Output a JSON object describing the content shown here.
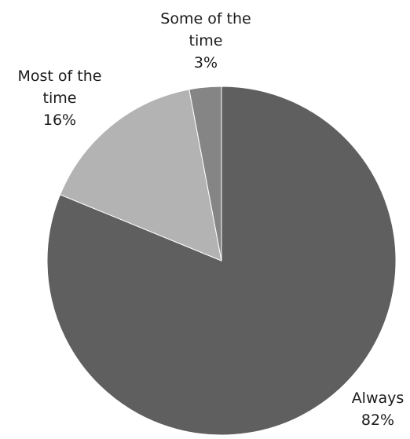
{
  "chart_data": {
    "type": "pie",
    "slices": [
      {
        "label_lines": [
          "Always"
        ],
        "percent_label": "82%",
        "value": 82,
        "color": "#5f5f5f"
      },
      {
        "label_lines": [
          "Most of the",
          "time"
        ],
        "percent_label": "16%",
        "value": 16,
        "color": "#b3b3b3"
      },
      {
        "label_lines": [
          "Some of the",
          "time"
        ],
        "percent_label": "3%",
        "value": 3,
        "color": "#858585"
      }
    ],
    "start": "12 o'clock",
    "direction": "clockwise",
    "legend": "none"
  }
}
